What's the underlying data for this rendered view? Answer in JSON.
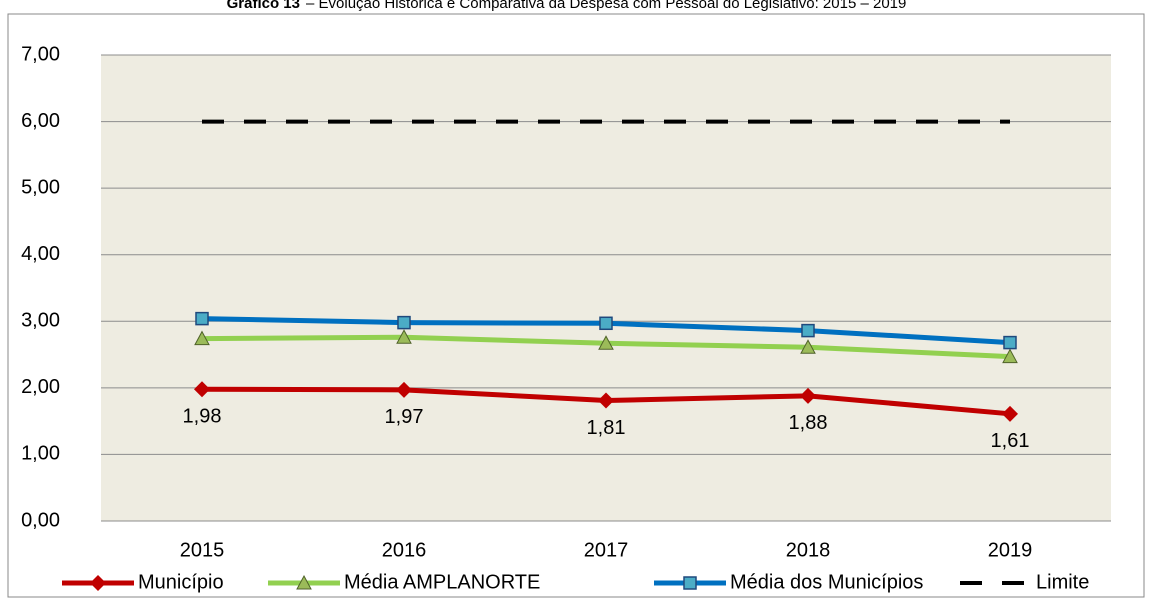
{
  "chart_data": {
    "type": "line",
    "title_prefix": "Gráfico 13",
    "title": "– Evolução Histórica e Comparativa da Despesa com Pessoal do Legislativo: 2015 – 2019",
    "categories": [
      "2015",
      "2016",
      "2017",
      "2018",
      "2019"
    ],
    "series": [
      {
        "name": "Município",
        "color": "#c00000",
        "marker": "diamond",
        "values": [
          1.98,
          1.97,
          1.81,
          1.88,
          1.61
        ],
        "value_labels": [
          "1,98",
          "1,97",
          "1,81",
          "1,88",
          "1,61"
        ]
      },
      {
        "name": "Média AMPLANORTE",
        "color": "#92d050",
        "marker": "triangle",
        "values": [
          2.74,
          2.76,
          2.67,
          2.61,
          2.47
        ]
      },
      {
        "name": "Média dos Municípios",
        "color": "#0070c0",
        "marker": "square",
        "values": [
          3.04,
          2.98,
          2.97,
          2.86,
          2.68
        ]
      },
      {
        "name": "Limite",
        "color": "#000000",
        "dash": true,
        "values": [
          6,
          6,
          6,
          6,
          6
        ]
      }
    ],
    "ylim": [
      0,
      7
    ],
    "yticks": [
      {
        "value": 0,
        "label": "0,00"
      },
      {
        "value": 1,
        "label": "1,00"
      },
      {
        "value": 2,
        "label": "2,00"
      },
      {
        "value": 3,
        "label": "3,00"
      },
      {
        "value": 4,
        "label": "4,00"
      },
      {
        "value": 5,
        "label": "5,00"
      },
      {
        "value": 6,
        "label": "6,00"
      },
      {
        "value": 7,
        "label": "7,00"
      }
    ],
    "grid": true,
    "legend": "bottom",
    "background": "#eeece1"
  }
}
